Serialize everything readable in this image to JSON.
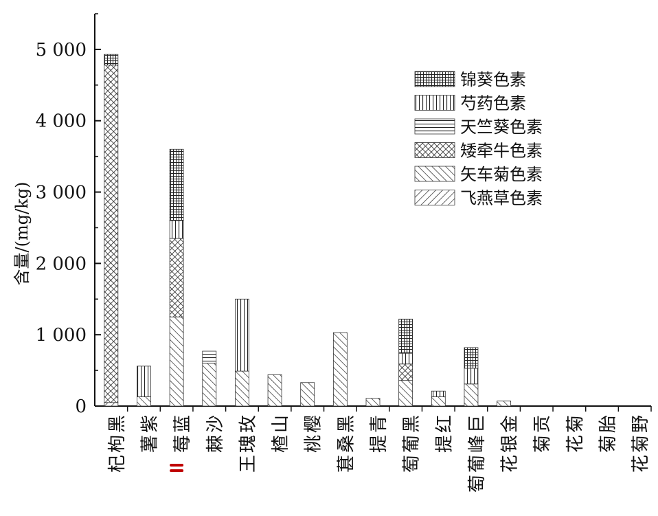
{
  "chart_data": {
    "type": "bar",
    "stacked": true,
    "title": "",
    "xlabel": "",
    "ylabel": "含量/(mg/kg)",
    "ylim": [
      0,
      5500
    ],
    "yticks": [
      0,
      1000,
      2000,
      3000,
      4000,
      5000
    ],
    "ytick_labels": [
      "0",
      "1 000",
      "2 000",
      "3 000",
      "4 000",
      "5 000"
    ],
    "grid": false,
    "legend_position": "top-right",
    "categories": [
      "黑枸杞",
      "紫薯",
      "蓝莓",
      "沙棘",
      "玫瑰王",
      "山楂",
      "樱桃",
      "黑桑葚",
      "青提",
      "黑葡萄",
      "红提",
      "巨峰葡萄",
      "金银花",
      "贡菊",
      "菊花",
      "胎菊",
      "野菊花"
    ],
    "highlight_marker": {
      "category": "蓝莓",
      "color": "#c00000"
    },
    "series": [
      {
        "name": "飞燕草色素",
        "pattern": "diag-right",
        "values": [
          50,
          0,
          0,
          0,
          0,
          0,
          0,
          0,
          0,
          0,
          0,
          0,
          0,
          0,
          0,
          0,
          0
        ]
      },
      {
        "name": "矢车菊色素",
        "pattern": "diag-left",
        "values": [
          0,
          130,
          1250,
          600,
          490,
          440,
          330,
          1030,
          110,
          360,
          130,
          310,
          70,
          0,
          0,
          0,
          0
        ]
      },
      {
        "name": "矮牵牛色素",
        "pattern": "cross",
        "values": [
          4730,
          0,
          1100,
          0,
          0,
          0,
          0,
          0,
          0,
          230,
          0,
          0,
          0,
          0,
          0,
          0,
          0
        ]
      },
      {
        "name": "天竺葵色素",
        "pattern": "horizontal",
        "values": [
          0,
          0,
          0,
          170,
          0,
          0,
          0,
          0,
          0,
          0,
          0,
          0,
          0,
          0,
          0,
          0,
          0
        ]
      },
      {
        "name": "芍药色素",
        "pattern": "vertical",
        "values": [
          0,
          430,
          250,
          0,
          1010,
          0,
          0,
          0,
          0,
          150,
          80,
          220,
          0,
          0,
          0,
          0,
          0
        ]
      },
      {
        "name": "锦葵色素",
        "pattern": "grid",
        "values": [
          150,
          0,
          1000,
          0,
          0,
          0,
          0,
          0,
          0,
          480,
          0,
          290,
          0,
          0,
          0,
          0,
          0
        ]
      }
    ],
    "legend_order": [
      "锦葵色素",
      "芍药色素",
      "天竺葵色素",
      "矮牵牛色素",
      "矢车菊色素",
      "飞燕草色素"
    ]
  }
}
